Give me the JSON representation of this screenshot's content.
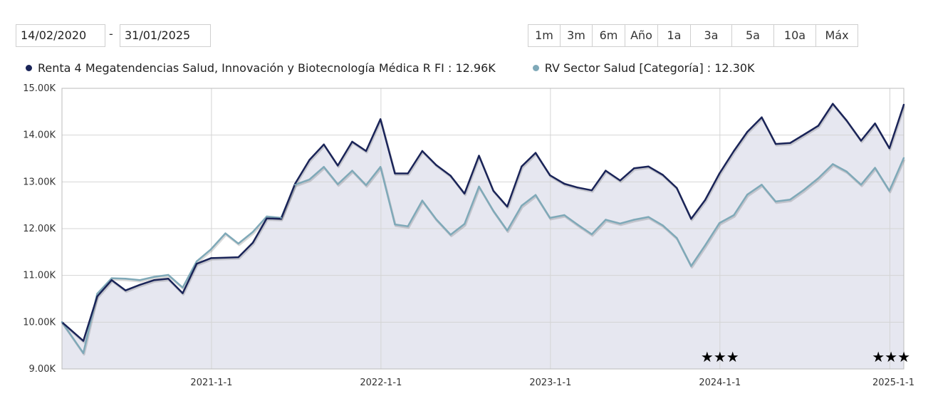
{
  "date_range": {
    "from": "14/02/2020",
    "separator": "-",
    "to": "31/01/2025"
  },
  "range_buttons": [
    "1m",
    "3m",
    "6m",
    "Año",
    "1a",
    "3a",
    "5a",
    "10a",
    "Máx"
  ],
  "legend": [
    {
      "label": "Renta 4 Megatendencias Salud, Innovación y Biotecnología Médica R FI : 12.96K",
      "color": "#1a2458"
    },
    {
      "label": "RV Sector Salud [Categoría] : 12.30K",
      "color": "#7fa9b8"
    }
  ],
  "colors": {
    "fund": "#1a2458",
    "category": "#7fa9b8",
    "fill": "#e6e7f0",
    "grid": "#d4d4d4"
  },
  "chart_data": {
    "type": "line",
    "grid": true,
    "ylim": [
      9000,
      15000
    ],
    "y_ticks": [
      {
        "value": 9000,
        "label": "9.00K"
      },
      {
        "value": 10000,
        "label": "10.00K"
      },
      {
        "value": 11000,
        "label": "11.00K"
      },
      {
        "value": 12000,
        "label": "12.00K"
      },
      {
        "value": 13000,
        "label": "13.00K"
      },
      {
        "value": 14000,
        "label": "14.00K"
      },
      {
        "value": 15000,
        "label": "15.00K"
      }
    ],
    "xlim": [
      "2020-02-14",
      "2025-01-31"
    ],
    "x_ticks": [
      {
        "date": "2021-01-01",
        "label": "2021-1-1"
      },
      {
        "date": "2022-01-01",
        "label": "2022-1-1"
      },
      {
        "date": "2023-01-01",
        "label": "2023-1-1"
      },
      {
        "date": "2024-01-01",
        "label": "2024-1-1"
      },
      {
        "date": "2025-01-01",
        "label": "2025-1-1"
      }
    ],
    "x": [
      "2020-02-14",
      "2020-03-31",
      "2020-04-30",
      "2020-05-31",
      "2020-06-30",
      "2020-07-31",
      "2020-08-31",
      "2020-09-30",
      "2020-10-31",
      "2020-11-30",
      "2020-12-31",
      "2021-01-31",
      "2021-02-28",
      "2021-03-31",
      "2021-04-30",
      "2021-05-31",
      "2021-06-30",
      "2021-07-31",
      "2021-08-31",
      "2021-09-30",
      "2021-10-31",
      "2021-11-30",
      "2021-12-31",
      "2022-01-31",
      "2022-02-28",
      "2022-03-31",
      "2022-04-30",
      "2022-05-31",
      "2022-06-30",
      "2022-07-31",
      "2022-08-31",
      "2022-09-30",
      "2022-10-31",
      "2022-11-30",
      "2022-12-31",
      "2023-01-31",
      "2023-02-28",
      "2023-03-31",
      "2023-04-30",
      "2023-05-31",
      "2023-06-30",
      "2023-07-31",
      "2023-08-31",
      "2023-09-30",
      "2023-10-31",
      "2023-11-30",
      "2023-12-31",
      "2024-01-31",
      "2024-02-29",
      "2024-03-31",
      "2024-04-30",
      "2024-05-31",
      "2024-06-30",
      "2024-07-31",
      "2024-08-31",
      "2024-09-30",
      "2024-10-31",
      "2024-11-30",
      "2024-12-31",
      "2025-01-31"
    ],
    "series": [
      {
        "name": "Renta 4 Megatendencias Salud, Innovación y Biotecnología Médica R FI",
        "values": [
          10000,
          9600,
          10550,
          10900,
          10680,
          10800,
          10900,
          10930,
          10620,
          11250,
          11370,
          11380,
          11390,
          11700,
          12220,
          12210,
          12960,
          13470,
          13800,
          13350,
          13860,
          13660,
          14340,
          13180,
          13180,
          13660,
          13360,
          13130,
          12750,
          13560,
          12810,
          12470,
          13330,
          13620,
          13140,
          12960,
          12880,
          12820,
          13240,
          13030,
          13290,
          13330,
          13150,
          12870,
          12210,
          12610,
          13180,
          13660,
          14070,
          14380,
          13810,
          13830,
          14010,
          14200,
          14670,
          14310,
          13880,
          14250,
          13720,
          14650
        ]
      },
      {
        "name": "RV Sector Salud [Categoría]",
        "values": [
          10000,
          9340,
          10610,
          10940,
          10930,
          10900,
          10970,
          11010,
          10740,
          11300,
          11560,
          11900,
          11680,
          11930,
          12260,
          12230,
          12940,
          13050,
          13320,
          12950,
          13240,
          12930,
          13320,
          12090,
          12050,
          12600,
          12200,
          11870,
          12100,
          12900,
          12380,
          11960,
          12490,
          12720,
          12230,
          12290,
          12090,
          11880,
          12190,
          12110,
          12190,
          12250,
          12070,
          11800,
          11200,
          11640,
          12120,
          12290,
          12730,
          12940,
          12580,
          12620,
          12830,
          13080,
          13380,
          13220,
          12940,
          13300,
          12810,
          13510
        ]
      }
    ],
    "annotations": [
      {
        "text": "★★★",
        "date": "2024-01-01"
      },
      {
        "text": "★★★",
        "date": "2025-01-01"
      }
    ]
  }
}
